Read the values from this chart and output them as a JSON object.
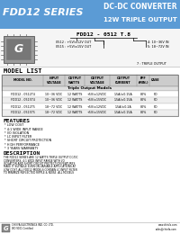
{
  "title_left": "FDD12 SERIES",
  "title_right_line1": "DC-DC CONVERTER",
  "title_right_line2": "12W TRIPLE OUTPUT",
  "header_bg": "#5b9bd5",
  "header_text_color": "#ffffff",
  "part_number_label": "FDD12 - 0512 T.8",
  "model_list_title": "MODEL LIST",
  "table_headers": [
    "MODEL NO.",
    "INPUT\nVOLTAGE",
    "OUTPUT\nWATTS",
    "OUTPUT\nVOLTAGE",
    "OUTPUT\nCURRENT",
    "EFF\n(MIN.)",
    "CASE"
  ],
  "table_subheader": "Triple Output Models",
  "table_rows": [
    [
      "FDD12 - 0512T4",
      "10~36 VDC",
      "12 WATTS",
      "+5V/±12VDC",
      "1.5A/±0.15A",
      "80%",
      "PD"
    ],
    [
      "FDD12 - 0515T4",
      "10~36 VDC",
      "12 WATTS",
      "+5V/±15VDC",
      "1.5A/±0.15A",
      "80%",
      "PD"
    ],
    [
      "FDD12 - 0512T5",
      "18~72 VDC",
      "12 WATTS",
      "+5V/±12VDC",
      "1.5A/±0.2A",
      "80%",
      "PD"
    ],
    [
      "FDD12 - 0515T5",
      "18~72 VDC",
      "12 WATTS",
      "+5V/±15VDC",
      "1.5A/±0.15A",
      "80%",
      "PD"
    ]
  ],
  "features_title": "FEATURES",
  "features": [
    "* LOW COST",
    "* 4:1 WIDE INPUT RANGE",
    "* I/O ISOLATION",
    "* LC INPUT FILTER",
    "* SHORT CIRCUIT PROTECTION",
    "* HIGH PERFORMANCE",
    "* 3 YEARS WARRANTY"
  ],
  "description_title": "DESCRIPTION",
  "description_text": "THE FDD12 SERIES ARE 12 WATTS TRIPLE OUTPUT DC/DC CONVERTERS. 4:1 WIDE INPUT RANGE WITH I/O ISOLATION AND SHORT CIRCUIT PROTECTION FEATURES MAKE IT SUITABLE EVEN ON VARIABLE APPLICATIONS AT LOW COST. ALL FDD12 MODELS CONTAIN LC INPUT FILTER TO MINIMIZE REFLECTED RIPPLE & NOISE. ALL MODELS ARE PACKAGED IN 1 x W x .3\" x 2\" x 0.43\" PACKAGE COATED METAL CASE PIN CONFIGURATION, AND PCB MOUNTABLE DIRECTLY.",
  "company_name": "CHINFA ELECTRONICS IND. CO. LTD.",
  "iso_text": "ISO 9001 Certified",
  "website1": "www.chinfa.com",
  "website2": "sales@chinfa.com",
  "bg_color": "#ffffff",
  "pn_annotations": [
    "4: 10~36V IN",
    "5: 18~72V IN"
  ],
  "pn_output_notes": [
    "0512 : +5V/±12V OUT",
    "0515 : +5V/±15V OUT"
  ],
  "pn_suffix_note": "7 : TRIPLE OUTPUT"
}
